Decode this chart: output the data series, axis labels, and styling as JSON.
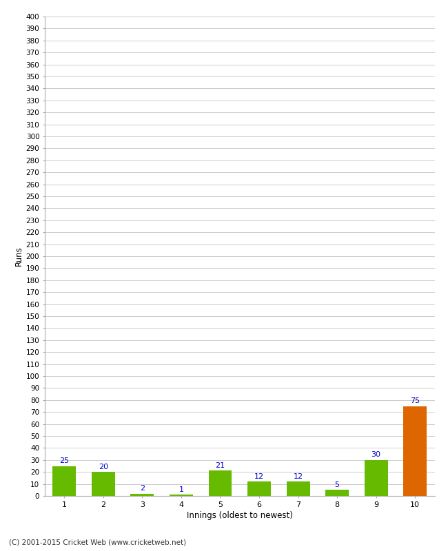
{
  "categories": [
    "1",
    "2",
    "3",
    "4",
    "5",
    "6",
    "7",
    "8",
    "9",
    "10"
  ],
  "values": [
    25,
    20,
    2,
    1,
    21,
    12,
    12,
    5,
    30,
    75
  ],
  "bar_colors": [
    "#66bb00",
    "#66bb00",
    "#66bb00",
    "#66bb00",
    "#66bb00",
    "#66bb00",
    "#66bb00",
    "#66bb00",
    "#66bb00",
    "#dd6600"
  ],
  "xlabel": "Innings (oldest to newest)",
  "ylabel": "Runs",
  "ylim": [
    0,
    400
  ],
  "ytick_step": 10,
  "background_color": "#ffffff",
  "grid_color": "#cccccc",
  "label_color": "#0000cc",
  "footer": "(C) 2001-2015 Cricket Web (www.cricketweb.net)"
}
